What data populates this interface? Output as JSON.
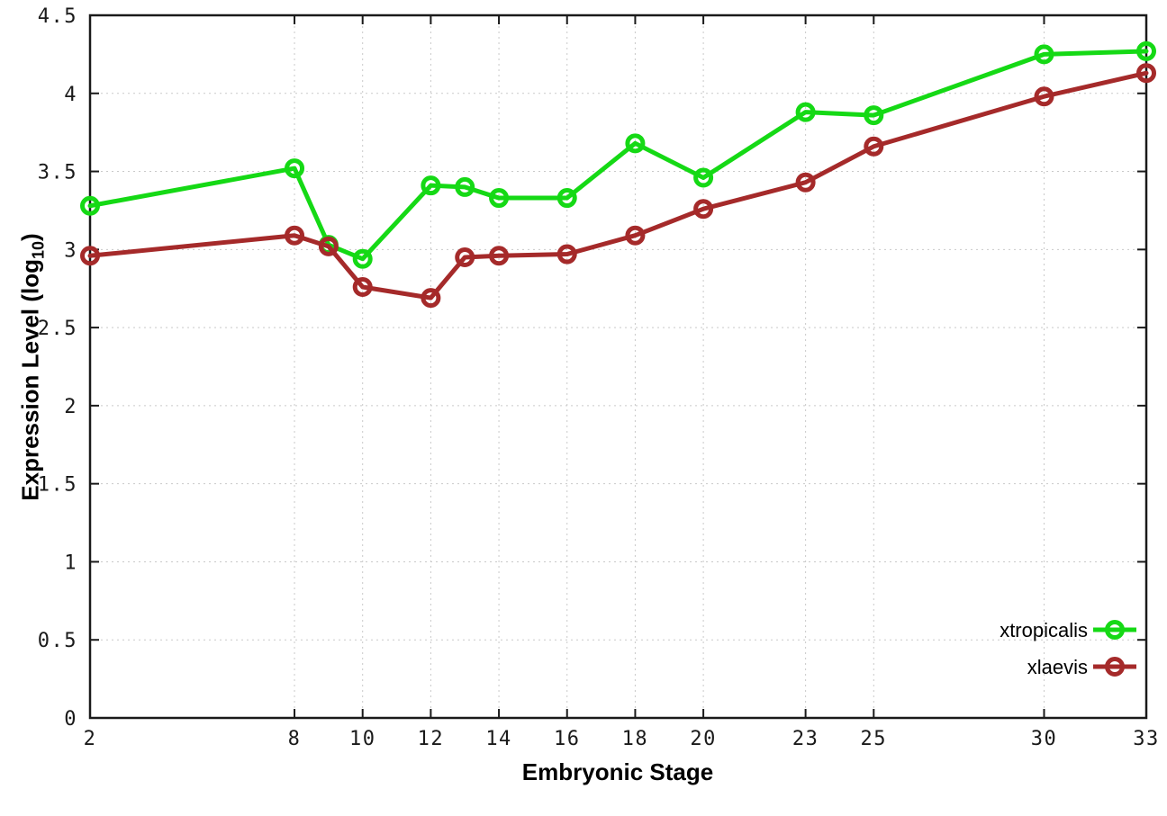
{
  "chart_data": {
    "type": "line",
    "title": "",
    "xlabel": "Embryonic Stage",
    "ylabel": "Expression Level (log10)",
    "ylabel_parts": {
      "prefix": "Expression Level (log",
      "subscript": "10",
      "suffix": ")"
    },
    "xlim": [
      2,
      33
    ],
    "ylim": [
      0,
      4.5
    ],
    "x_ticks": [
      2,
      8,
      10,
      12,
      14,
      16,
      18,
      20,
      23,
      25,
      30,
      33
    ],
    "x_tick_labels": [
      "2",
      "8",
      "10",
      "12",
      "14",
      "16",
      "18",
      "20",
      "23",
      "25",
      "30",
      "33"
    ],
    "y_ticks": [
      0,
      0.5,
      1,
      1.5,
      2,
      2.5,
      3,
      3.5,
      4,
      4.5
    ],
    "y_tick_labels": [
      "0",
      "0.5",
      "1",
      "1.5",
      "2",
      "2.5",
      "3",
      "3.5",
      "4",
      "4.5"
    ],
    "grid": true,
    "legend_position": "bottom-right",
    "series": [
      {
        "name": "xtropicalis",
        "color": "#15d915",
        "x": [
          2,
          8,
          9,
          10,
          12,
          13,
          14,
          16,
          18,
          20,
          23,
          25,
          30,
          33
        ],
        "y": [
          3.28,
          3.52,
          3.03,
          2.94,
          3.41,
          3.4,
          3.33,
          3.33,
          3.68,
          3.46,
          3.88,
          3.86,
          4.25,
          4.27
        ]
      },
      {
        "name": "xlaevis",
        "color": "#a52a2a",
        "x": [
          2,
          8,
          9,
          10,
          12,
          13,
          14,
          16,
          18,
          20,
          23,
          25,
          30,
          33
        ],
        "y": [
          2.96,
          3.09,
          3.02,
          2.76,
          2.69,
          2.95,
          2.96,
          2.97,
          3.09,
          3.26,
          3.43,
          3.66,
          3.98,
          4.13
        ]
      }
    ]
  }
}
